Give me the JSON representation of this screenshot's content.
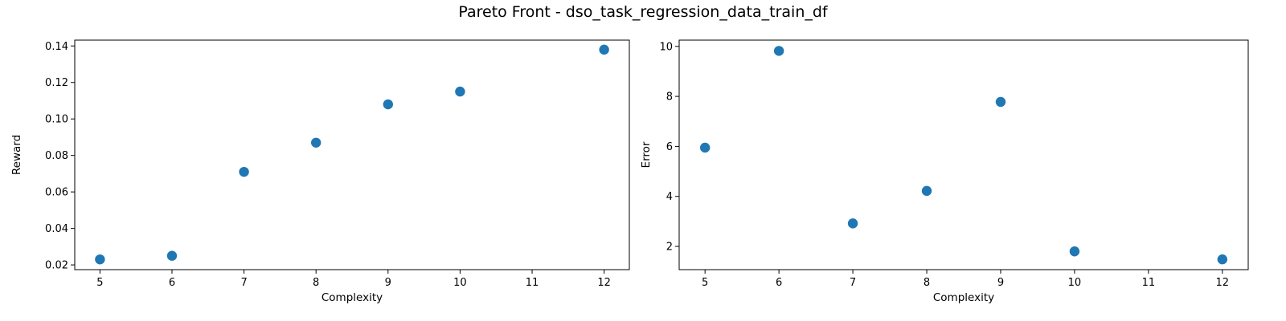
{
  "title": "Pareto Front - dso_task_regression_data_train_df",
  "colors": {
    "marker": "#1f77b4",
    "axis": "#000000"
  },
  "chart_data": [
    {
      "type": "scatter",
      "xlabel": "Complexity",
      "ylabel": "Reward",
      "xlim": [
        4.65,
        12.35
      ],
      "ylim": [
        0.0174,
        0.1432
      ],
      "xticks": [
        5,
        6,
        7,
        8,
        9,
        10,
        11,
        12
      ],
      "xtick_labels": [
        "5",
        "6",
        "7",
        "8",
        "9",
        "10",
        "11",
        "12"
      ],
      "yticks": [
        0.02,
        0.04,
        0.06,
        0.08,
        0.1,
        0.12,
        0.14
      ],
      "ytick_labels": [
        "0.02",
        "0.04",
        "0.06",
        "0.08",
        "0.10",
        "0.12",
        "0.14"
      ],
      "grid": false,
      "x": [
        5,
        6,
        7,
        8,
        9,
        10,
        12
      ],
      "y": [
        0.023,
        0.025,
        0.071,
        0.087,
        0.108,
        0.115,
        0.138
      ]
    },
    {
      "type": "scatter",
      "xlabel": "Complexity",
      "ylabel": "Error",
      "xlim": [
        4.65,
        12.35
      ],
      "ylim": [
        1.07,
        10.25
      ],
      "xticks": [
        5,
        6,
        7,
        8,
        9,
        10,
        11,
        12
      ],
      "xtick_labels": [
        "5",
        "6",
        "7",
        "8",
        "9",
        "10",
        "11",
        "12"
      ],
      "yticks": [
        2,
        4,
        6,
        8,
        10
      ],
      "ytick_labels": [
        "2",
        "4",
        "6",
        "8",
        "10"
      ],
      "grid": false,
      "x": [
        5,
        6,
        7,
        8,
        9,
        10,
        12
      ],
      "y": [
        5.95,
        9.82,
        2.92,
        4.22,
        7.78,
        1.8,
        1.48
      ]
    }
  ]
}
